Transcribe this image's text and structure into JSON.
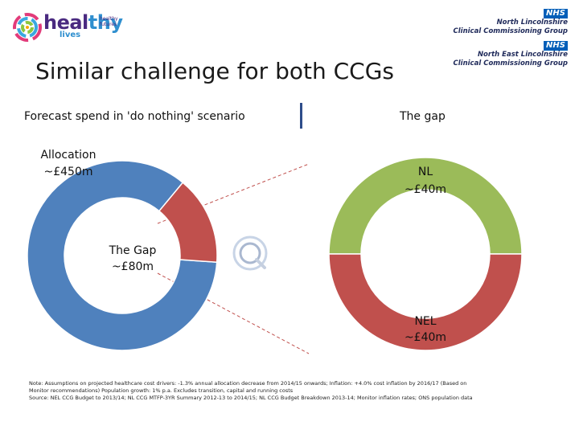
{
  "logo": {
    "word_a": "heal",
    "word_b": "thy",
    "sub": "lives",
    "tag": "healthy futures"
  },
  "nhs": [
    {
      "badge": "NHS",
      "line1": "North Lincolnshire",
      "line2": "Clinical Commissioning Group"
    },
    {
      "badge": "NHS",
      "line1": "North East Lincolnshire",
      "line2": "Clinical Commissioning Group"
    }
  ],
  "title": "Similar challenge for both CCGs",
  "left_heading": "Forecast spend in 'do nothing' scenario",
  "right_heading": "The gap",
  "colors": {
    "allocation": "#4f81bd",
    "gap": "#c0504d",
    "nl": "#9bbb59",
    "connector": "#c0504d",
    "divider": "#2e4d8a"
  },
  "chart_data": [
    {
      "type": "pie",
      "donut": true,
      "title": "Forecast spend in 'do nothing' scenario",
      "slices": [
        {
          "label_line1": "Allocation",
          "label_line2": "~£450m",
          "value": 450,
          "color": "#4f81bd"
        },
        {
          "label_line1": "The Gap",
          "label_line2": "~£80m",
          "value": 80,
          "color": "#c0504d"
        }
      ]
    },
    {
      "type": "pie",
      "donut": true,
      "title": "The gap",
      "slices": [
        {
          "label_line1": "NL",
          "label_line2": "~£40m",
          "value": 40,
          "color": "#9bbb59"
        },
        {
          "label_line1": "NEL",
          "label_line2": "~£40m",
          "value": 40,
          "color": "#c0504d"
        }
      ]
    }
  ],
  "notes": {
    "line1": "Note: Assumptions on projected healthcare cost drivers: -1.3% annual allocation decrease from 2014/15 onwards; Inflation: +4.0% cost inflation by 2016/17 (Based on",
    "line2": "Monitor recommendations) Population growth: 1% p.a. Excludes transition, capital and running costs",
    "line3": "Source: NEL CCG Budget to 2013/14; NL CCG MTFP-3YR Summary 2012-13 to 2014/15; NL CCG Budget Breakdown 2013-14; Monitor inflation rates; ONS population data"
  }
}
